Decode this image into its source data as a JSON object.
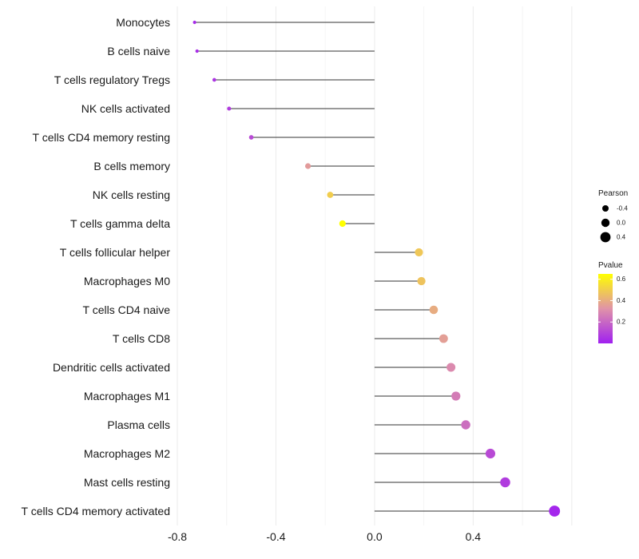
{
  "chart_data": {
    "type": "lollipop",
    "title": "",
    "xlabel": "",
    "ylabel": "",
    "xlim": [
      -0.8,
      0.82
    ],
    "x_ticks": [
      -0.8,
      -0.4,
      0.0,
      0.4
    ],
    "x_tick_labels": [
      "-0.8",
      "-0.4",
      "0.0",
      "0.4"
    ],
    "categories": [
      "Monocytes",
      "B cells naive",
      "T cells regulatory  Tregs",
      "NK cells activated",
      "T cells CD4 memory resting",
      "B cells memory",
      "NK cells resting",
      "T cells gamma delta",
      "T cells follicular helper",
      "Macrophages M0",
      "T cells CD4 naive",
      "T cells CD8",
      "Dendritic cells activated",
      "Macrophages M1",
      "Plasma cells",
      "Macrophages M2",
      "Mast cells resting",
      "T cells CD4 memory activated"
    ],
    "pearson": [
      -0.73,
      -0.72,
      -0.65,
      -0.59,
      -0.5,
      -0.27,
      -0.18,
      -0.13,
      0.18,
      0.19,
      0.24,
      0.28,
      0.31,
      0.33,
      0.37,
      0.47,
      0.53,
      0.73
    ],
    "pvalue": [
      0.03,
      0.04,
      0.06,
      0.08,
      0.12,
      0.35,
      0.5,
      0.65,
      0.48,
      0.47,
      0.4,
      0.36,
      0.3,
      0.26,
      0.22,
      0.12,
      0.08,
      0.02
    ],
    "legend_size": {
      "title": "Pearson",
      "entries": [
        {
          "label": "-0.4",
          "value": -0.4
        },
        {
          "label": "0.0",
          "value": 0.0
        },
        {
          "label": "0.4",
          "value": 0.4
        }
      ]
    },
    "legend_color": {
      "title": "Pvalue",
      "ticks": [
        {
          "label": "0.6",
          "value": 0.6
        },
        {
          "label": "0.4",
          "value": 0.4
        },
        {
          "label": "0.2",
          "value": 0.2
        }
      ],
      "range": [
        0.0,
        0.65
      ],
      "low_color": "#a020f0",
      "mid_color": "#e093a8",
      "high_color": "#ffff00"
    },
    "grid": true
  }
}
